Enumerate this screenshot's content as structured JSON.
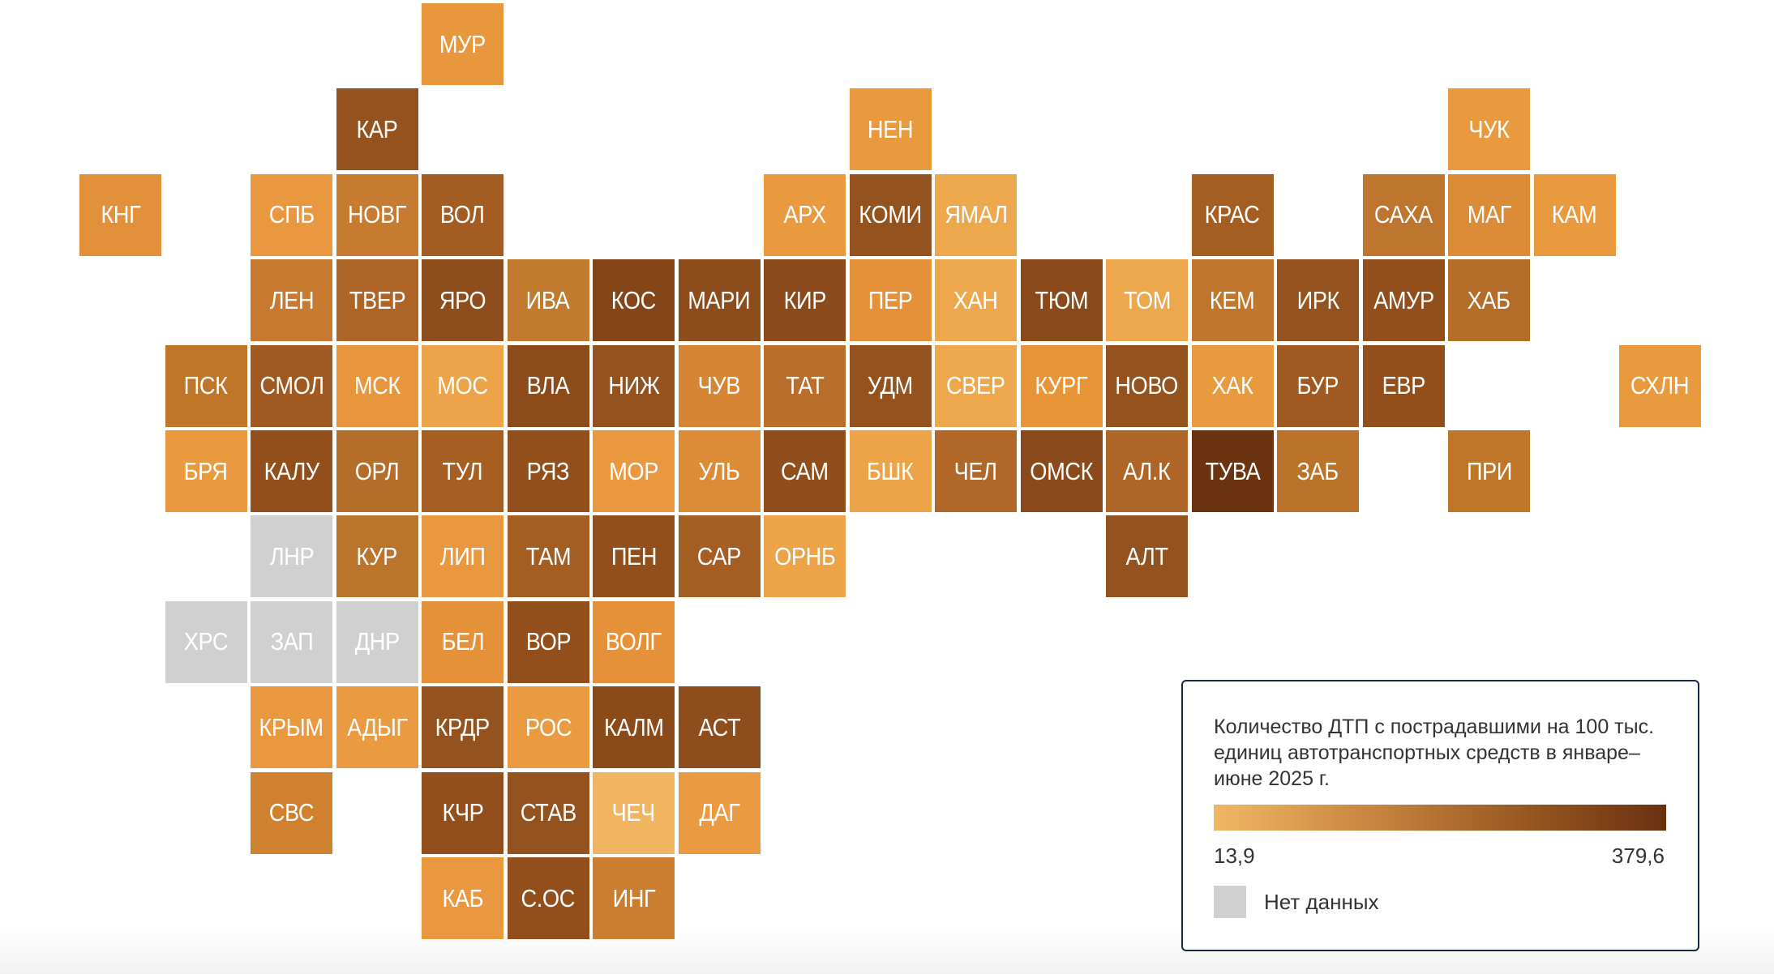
{
  "legend": {
    "title": "Количество ДТП с пострадавшими на 100 тыс. единиц автотранспортных средств в январе–июне 2025 г.",
    "min_label": "13,9",
    "max_label": "379,6",
    "min_value": 13.9,
    "max_value": 379.6,
    "gradient_start": "#F1B765",
    "gradient_end": "#6A3012",
    "no_data_label": "Нет данных",
    "no_data_color": "#D0D0D0"
  },
  "regions": [
    {
      "code": "МУР",
      "color": "#E9973C"
    },
    {
      "code": "КАР",
      "color": "#94531E"
    },
    {
      "code": "НЕН",
      "color": "#E99A3F"
    },
    {
      "code": "ЧУК",
      "color": "#E99A3F"
    },
    {
      "code": "КНГ",
      "color": "#E3903A"
    },
    {
      "code": "СПБ",
      "color": "#EA983F"
    },
    {
      "code": "НОВГ",
      "color": "#C77B30"
    },
    {
      "code": "ВОЛ",
      "color": "#A35C22"
    },
    {
      "code": "АРХ",
      "color": "#E99A3F"
    },
    {
      "code": "КОМИ",
      "color": "#94531E"
    },
    {
      "code": "ЯМАЛ",
      "color": "#EDA84E"
    },
    {
      "code": "КРАС",
      "color": "#A55E22"
    },
    {
      "code": "САХА",
      "color": "#BE752E"
    },
    {
      "code": "МАГ",
      "color": "#DC8C36"
    },
    {
      "code": "КАМ",
      "color": "#E99A3F"
    },
    {
      "code": "ЛЕН",
      "color": "#C77A30"
    },
    {
      "code": "ТВЕР",
      "color": "#AE6426"
    },
    {
      "code": "ЯРО",
      "color": "#8E4D1C"
    },
    {
      "code": "ИВА",
      "color": "#C27A2F"
    },
    {
      "code": "КОС",
      "color": "#844518"
    },
    {
      "code": "МАРИ",
      "color": "#8D4C1C"
    },
    {
      "code": "КИР",
      "color": "#8A4A1B"
    },
    {
      "code": "ПЕР",
      "color": "#E4913A"
    },
    {
      "code": "ХАН",
      "color": "#EDA84E"
    },
    {
      "code": "ТЮМ",
      "color": "#8A4A1B"
    },
    {
      "code": "ТОМ",
      "color": "#EDA84E"
    },
    {
      "code": "КЕМ",
      "color": "#C0772D"
    },
    {
      "code": "ИРК",
      "color": "#93521E"
    },
    {
      "code": "АМУР",
      "color": "#924F1C"
    },
    {
      "code": "ХАБ",
      "color": "#B56C29"
    },
    {
      "code": "ПСК",
      "color": "#C07629"
    },
    {
      "code": "СМОЛ",
      "color": "#A05A21"
    },
    {
      "code": "МСК",
      "color": "#E8963D"
    },
    {
      "code": "МОС",
      "color": "#EDA34A"
    },
    {
      "code": "ВЛА",
      "color": "#8C4B1A"
    },
    {
      "code": "НИЖ",
      "color": "#93521E"
    },
    {
      "code": "ЧУВ",
      "color": "#D58533"
    },
    {
      "code": "ТАТ",
      "color": "#B96F2B"
    },
    {
      "code": "УДМ",
      "color": "#93521E"
    },
    {
      "code": "СВЕР",
      "color": "#EDA84E"
    },
    {
      "code": "КУРГ",
      "color": "#E8953A"
    },
    {
      "code": "НОВО",
      "color": "#93521E"
    },
    {
      "code": "ХАК",
      "color": "#E99A3F"
    },
    {
      "code": "БУР",
      "color": "#A05A21"
    },
    {
      "code": "ЕВР",
      "color": "#924F1C"
    },
    {
      "code": "СХЛН",
      "color": "#E99A3F"
    },
    {
      "code": "БРЯ",
      "color": "#E99A3F"
    },
    {
      "code": "КАЛУ",
      "color": "#924F1C"
    },
    {
      "code": "ОРЛ",
      "color": "#B56D2A"
    },
    {
      "code": "ТУЛ",
      "color": "#A65E23"
    },
    {
      "code": "РЯЗ",
      "color": "#924F1C"
    },
    {
      "code": "МОР",
      "color": "#EA983F"
    },
    {
      "code": "УЛЬ",
      "color": "#DC8C36"
    },
    {
      "code": "САМ",
      "color": "#8F4E1C"
    },
    {
      "code": "БШК",
      "color": "#EDA348"
    },
    {
      "code": "ЧЕЛ",
      "color": "#B06727"
    },
    {
      "code": "ОМСК",
      "color": "#8A4A1B"
    },
    {
      "code": "АЛ.К",
      "color": "#AD6627"
    },
    {
      "code": "ТУВА",
      "color": "#6C3311"
    },
    {
      "code": "ЗАБ",
      "color": "#BB722B"
    },
    {
      "code": "ПРИ",
      "color": "#C07629"
    },
    {
      "code": "ЛНР",
      "color": "#D0D0D0"
    },
    {
      "code": "КУР",
      "color": "#BB742B"
    },
    {
      "code": "ЛИП",
      "color": "#EA983F"
    },
    {
      "code": "ТАМ",
      "color": "#A55E22"
    },
    {
      "code": "ПЕН",
      "color": "#924F1C"
    },
    {
      "code": "САР",
      "color": "#A45D22"
    },
    {
      "code": "ОРНБ",
      "color": "#EDA348"
    },
    {
      "code": "АЛТ",
      "color": "#93521E"
    },
    {
      "code": "ХРС",
      "color": "#D0D0D0"
    },
    {
      "code": "ЗАП",
      "color": "#D0D0D0"
    },
    {
      "code": "ДНР",
      "color": "#D0D0D0"
    },
    {
      "code": "БЕЛ",
      "color": "#E4913A"
    },
    {
      "code": "ВОР",
      "color": "#924F1C"
    },
    {
      "code": "ВОЛГ",
      "color": "#E4913A"
    },
    {
      "code": "КРЫМ",
      "color": "#EA983F"
    },
    {
      "code": "АДЫГ",
      "color": "#EA9A40"
    },
    {
      "code": "КРДР",
      "color": "#93521E"
    },
    {
      "code": "РОС",
      "color": "#EA9A40"
    },
    {
      "code": "КАЛМ",
      "color": "#8B4A1A"
    },
    {
      "code": "АСТ",
      "color": "#8E4D1C"
    },
    {
      "code": "СВС",
      "color": "#CF812F"
    },
    {
      "code": "КЧР",
      "color": "#924F1C"
    },
    {
      "code": "СТАВ",
      "color": "#93521E"
    },
    {
      "code": "ЧЕЧ",
      "color": "#F1B562"
    },
    {
      "code": "ДАГ",
      "color": "#EA9A40"
    },
    {
      "code": "КАБ",
      "color": "#EA983F"
    },
    {
      "code": "С.ОС",
      "color": "#924F1C"
    },
    {
      "code": "ИНГ",
      "color": "#CC7E30"
    }
  ]
}
